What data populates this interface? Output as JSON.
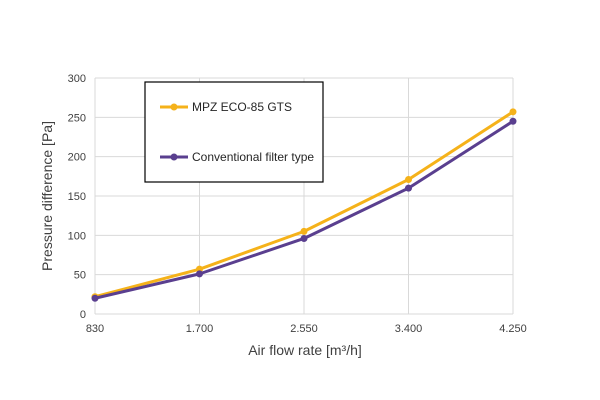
{
  "chart_data": {
    "type": "line",
    "categories": [
      "830",
      "1.700",
      "2.550",
      "3.400",
      "4.250"
    ],
    "series": [
      {
        "name": "MPZ ECO-85 GTS",
        "values": [
          22,
          57,
          105,
          171,
          257
        ],
        "color": "#F5B21A"
      },
      {
        "name": "Conventional filter type",
        "values": [
          20,
          51,
          96,
          160,
          245
        ],
        "color": "#5A3F8F"
      }
    ],
    "xlabel": "Air flow rate [m³/h]",
    "ylabel": "Pressure difference [Pa]",
    "ylim": [
      0,
      300
    ],
    "yticks": [
      0,
      50,
      100,
      150,
      200,
      250,
      300
    ],
    "grid": true,
    "legend_position": "top-left"
  }
}
